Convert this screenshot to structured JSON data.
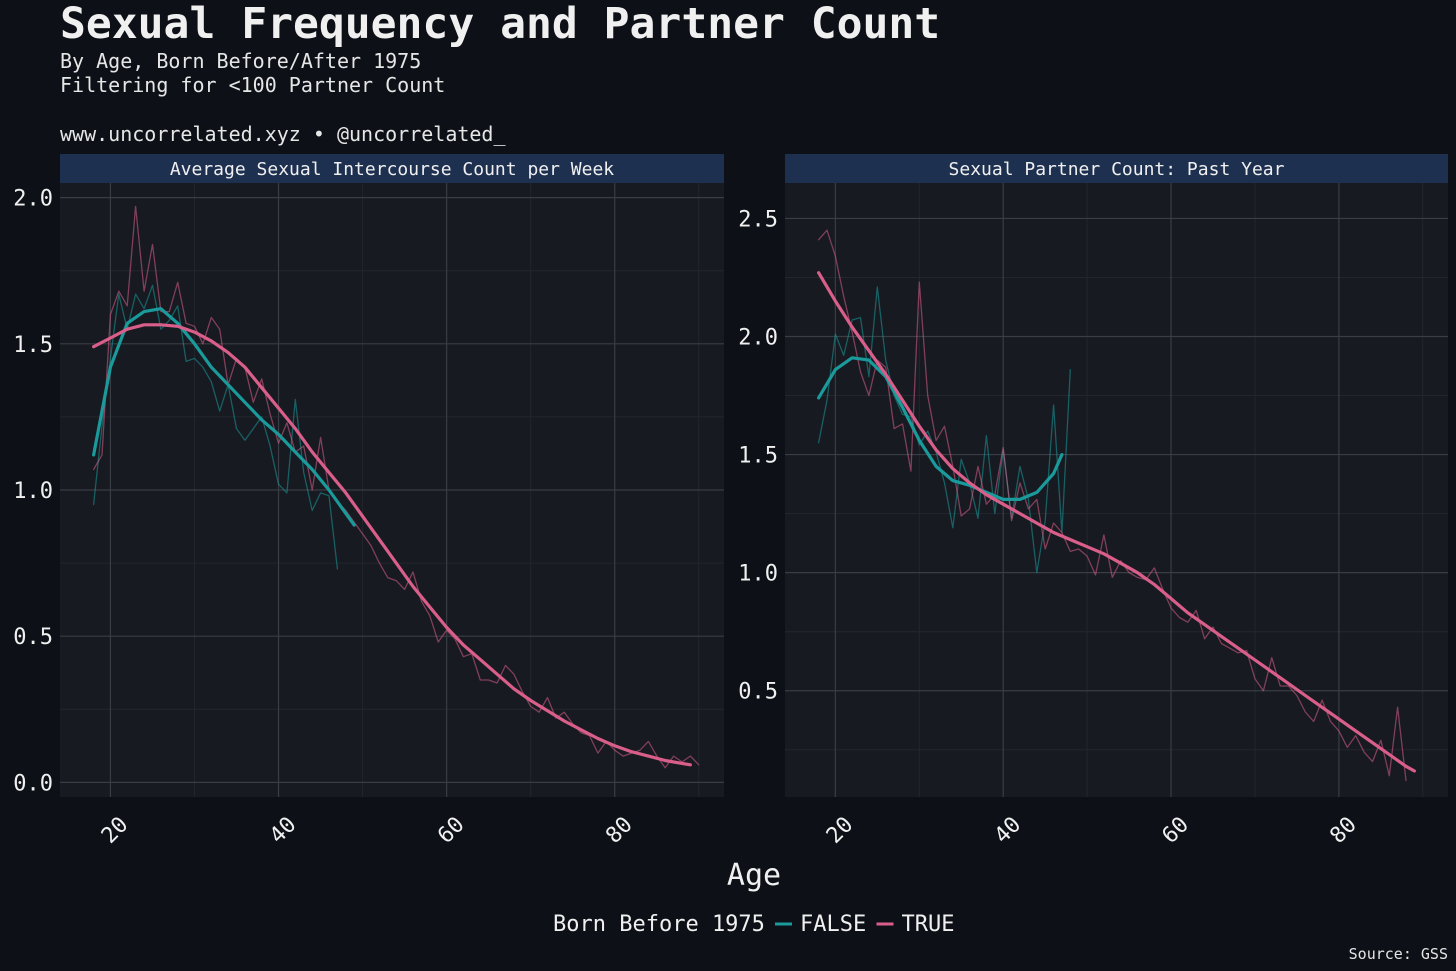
{
  "header": {
    "title": "Sexual Frequency and Partner Count",
    "subtitle1": "By Age, Born Before/After 1975",
    "subtitle2": "Filtering for <100 Partner Count",
    "credit": "www.uncorrelated.xyz • @uncorrelated_"
  },
  "footer": {
    "source": "Source: GSS"
  },
  "colors": {
    "FALSE": "#1a9a9a",
    "TRUE": "#d95f8a",
    "panel_bg": "#171a21",
    "strip_bg": "#1e3050",
    "grid": "#3a3d44"
  },
  "chart_data": [
    {
      "type": "line",
      "panel_title": "Average Sexual Intercourse Count per Week",
      "xlabel": "Age",
      "xlim": [
        14,
        93
      ],
      "ylim": [
        -0.05,
        2.05
      ],
      "x_ticks": [
        "20",
        "40",
        "60",
        "80"
      ],
      "y_ticks": [
        "0.0",
        "0.5",
        "1.0",
        "1.5",
        "2.0"
      ],
      "grid": true,
      "series": [
        {
          "name": "FALSE",
          "kind": "raw",
          "x_start": 18,
          "values": [
            0.95,
            1.22,
            1.45,
            1.67,
            1.55,
            1.67,
            1.62,
            1.7,
            1.55,
            1.58,
            1.63,
            1.44,
            1.45,
            1.42,
            1.37,
            1.27,
            1.36,
            1.21,
            1.17,
            1.21,
            1.25,
            1.15,
            1.02,
            0.99,
            1.31,
            1.06,
            0.93,
            0.99,
            0.98,
            0.73
          ]
        },
        {
          "name": "TRUE",
          "kind": "raw",
          "x_start": 18,
          "values": [
            1.07,
            1.12,
            1.6,
            1.68,
            1.63,
            1.97,
            1.68,
            1.84,
            1.61,
            1.61,
            1.71,
            1.57,
            1.56,
            1.5,
            1.59,
            1.55,
            1.36,
            1.45,
            1.42,
            1.3,
            1.38,
            1.26,
            1.16,
            1.23,
            1.13,
            1.15,
            1.0,
            1.18,
            1.0,
            0.96,
            0.93,
            0.89,
            0.85,
            0.81,
            0.75,
            0.7,
            0.69,
            0.66,
            0.72,
            0.62,
            0.57,
            0.48,
            0.52,
            0.49,
            0.43,
            0.44,
            0.35,
            0.35,
            0.34,
            0.4,
            0.37,
            0.31,
            0.26,
            0.24,
            0.29,
            0.22,
            0.24,
            0.2,
            0.17,
            0.16,
            0.1,
            0.14,
            0.11,
            0.09,
            0.1,
            0.11,
            0.14,
            0.09,
            0.05,
            0.09,
            0.07,
            0.09,
            0.06
          ]
        },
        {
          "name": "FALSE",
          "kind": "smooth",
          "points": [
            [
              18,
              1.12
            ],
            [
              20,
              1.42
            ],
            [
              22,
              1.57
            ],
            [
              24,
              1.61
            ],
            [
              26,
              1.62
            ],
            [
              28,
              1.57
            ],
            [
              30,
              1.5
            ],
            [
              32,
              1.42
            ],
            [
              34,
              1.36
            ],
            [
              36,
              1.3
            ],
            [
              38,
              1.24
            ],
            [
              40,
              1.19
            ],
            [
              42,
              1.13
            ],
            [
              44,
              1.07
            ],
            [
              46,
              1.0
            ],
            [
              48,
              0.92
            ],
            [
              49,
              0.88
            ]
          ]
        },
        {
          "name": "TRUE",
          "kind": "smooth",
          "points": [
            [
              18,
              1.49
            ],
            [
              20,
              1.52
            ],
            [
              22,
              1.55
            ],
            [
              24,
              1.565
            ],
            [
              26,
              1.565
            ],
            [
              28,
              1.56
            ],
            [
              30,
              1.54
            ],
            [
              32,
              1.51
            ],
            [
              34,
              1.47
            ],
            [
              36,
              1.42
            ],
            [
              38,
              1.35
            ],
            [
              40,
              1.28
            ],
            [
              42,
              1.21
            ],
            [
              44,
              1.13
            ],
            [
              46,
              1.06
            ],
            [
              48,
              0.99
            ],
            [
              50,
              0.91
            ],
            [
              52,
              0.83
            ],
            [
              54,
              0.75
            ],
            [
              56,
              0.67
            ],
            [
              58,
              0.6
            ],
            [
              60,
              0.53
            ],
            [
              62,
              0.47
            ],
            [
              64,
              0.42
            ],
            [
              66,
              0.37
            ],
            [
              68,
              0.32
            ],
            [
              70,
              0.28
            ],
            [
              72,
              0.245
            ],
            [
              74,
              0.21
            ],
            [
              76,
              0.18
            ],
            [
              78,
              0.15
            ],
            [
              80,
              0.125
            ],
            [
              82,
              0.105
            ],
            [
              84,
              0.09
            ],
            [
              86,
              0.075
            ],
            [
              88,
              0.065
            ],
            [
              89,
              0.06
            ]
          ]
        }
      ]
    },
    {
      "type": "line",
      "panel_title": "Sexual Partner Count: Past Year",
      "xlabel": "Age",
      "xlim": [
        14,
        93
      ],
      "ylim": [
        0.05,
        2.65
      ],
      "x_ticks": [
        "20",
        "40",
        "60",
        "80"
      ],
      "y_ticks": [
        "0.5",
        "1.0",
        "1.5",
        "2.0",
        "2.5"
      ],
      "grid": true,
      "series": [
        {
          "name": "FALSE",
          "kind": "raw",
          "x_start": 18,
          "values": [
            1.55,
            1.73,
            2.01,
            1.92,
            2.07,
            2.08,
            1.83,
            2.21,
            1.9,
            1.75,
            1.67,
            1.66,
            1.54,
            1.6,
            1.51,
            1.38,
            1.19,
            1.48,
            1.38,
            1.23,
            1.58,
            1.25,
            1.52,
            1.23,
            1.45,
            1.31,
            1.0,
            1.22,
            1.71,
            1.17,
            1.86
          ]
        },
        {
          "name": "TRUE",
          "kind": "raw",
          "x_start": 18,
          "values": [
            2.41,
            2.45,
            2.34,
            2.17,
            2.02,
            1.85,
            1.75,
            1.9,
            1.87,
            1.61,
            1.63,
            1.43,
            2.23,
            1.75,
            1.56,
            1.62,
            1.45,
            1.24,
            1.27,
            1.45,
            1.29,
            1.33,
            1.53,
            1.22,
            1.38,
            1.27,
            1.31,
            1.1,
            1.21,
            1.17,
            1.09,
            1.1,
            1.07,
            0.99,
            1.16,
            0.98,
            1.05,
            1.0,
            0.98,
            0.97,
            1.02,
            0.93,
            0.85,
            0.81,
            0.79,
            0.84,
            0.72,
            0.77,
            0.7,
            0.68,
            0.66,
            0.67,
            0.55,
            0.5,
            0.64,
            0.52,
            0.52,
            0.48,
            0.41,
            0.37,
            0.46,
            0.37,
            0.33,
            0.26,
            0.31,
            0.24,
            0.2,
            0.29,
            0.14,
            0.43,
            0.12
          ]
        },
        {
          "name": "FALSE",
          "kind": "smooth",
          "points": [
            [
              18,
              1.74
            ],
            [
              20,
              1.86
            ],
            [
              22,
              1.91
            ],
            [
              24,
              1.9
            ],
            [
              26,
              1.83
            ],
            [
              28,
              1.7
            ],
            [
              30,
              1.56
            ],
            [
              32,
              1.45
            ],
            [
              34,
              1.39
            ],
            [
              36,
              1.37
            ],
            [
              38,
              1.34
            ],
            [
              40,
              1.31
            ],
            [
              42,
              1.31
            ],
            [
              44,
              1.34
            ],
            [
              46,
              1.42
            ],
            [
              47,
              1.5
            ]
          ]
        },
        {
          "name": "TRUE",
          "kind": "smooth",
          "points": [
            [
              18,
              2.27
            ],
            [
              20,
              2.15
            ],
            [
              22,
              2.04
            ],
            [
              24,
              1.94
            ],
            [
              26,
              1.84
            ],
            [
              28,
              1.73
            ],
            [
              30,
              1.62
            ],
            [
              32,
              1.52
            ],
            [
              34,
              1.44
            ],
            [
              36,
              1.38
            ],
            [
              38,
              1.33
            ],
            [
              40,
              1.29
            ],
            [
              42,
              1.25
            ],
            [
              44,
              1.21
            ],
            [
              46,
              1.17
            ],
            [
              48,
              1.14
            ],
            [
              50,
              1.11
            ],
            [
              52,
              1.08
            ],
            [
              54,
              1.04
            ],
            [
              56,
              1.0
            ],
            [
              58,
              0.95
            ],
            [
              60,
              0.89
            ],
            [
              62,
              0.83
            ],
            [
              64,
              0.78
            ],
            [
              66,
              0.73
            ],
            [
              68,
              0.68
            ],
            [
              70,
              0.63
            ],
            [
              72,
              0.58
            ],
            [
              74,
              0.53
            ],
            [
              76,
              0.48
            ],
            [
              78,
              0.43
            ],
            [
              80,
              0.38
            ],
            [
              82,
              0.33
            ],
            [
              84,
              0.28
            ],
            [
              86,
              0.23
            ],
            [
              88,
              0.18
            ],
            [
              89,
              0.16
            ]
          ]
        }
      ]
    }
  ],
  "legend": {
    "title": "Born Before 1975",
    "items": [
      "FALSE",
      "TRUE"
    ],
    "position": "bottom"
  }
}
